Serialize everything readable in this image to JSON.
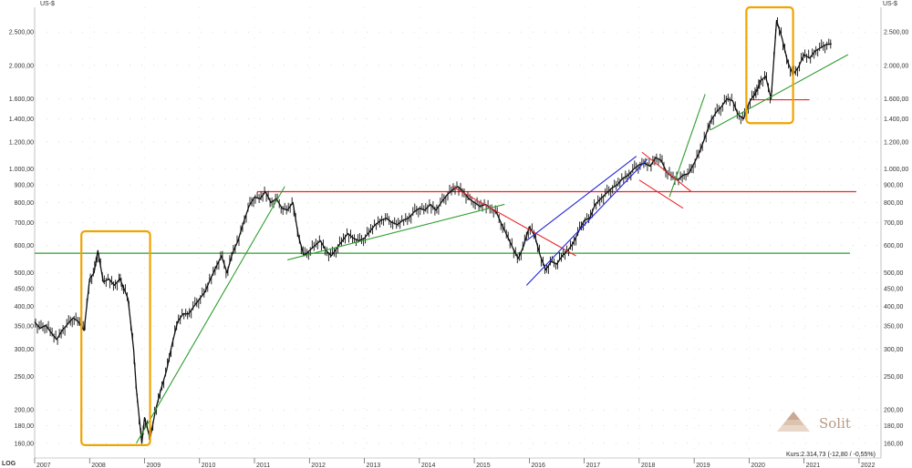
{
  "chart_data": {
    "type": "line",
    "unit_label": "US-$",
    "scale_label": "LOG",
    "y_scale": "log",
    "ylim": [
      145,
      2950
    ],
    "xlim": [
      2007.0,
      2022.4
    ],
    "grid": true,
    "y_ticks": [
      {
        "value": 160,
        "label": "160,00"
      },
      {
        "value": 180,
        "label": "180,00"
      },
      {
        "value": 200,
        "label": "200,00"
      },
      {
        "value": 250,
        "label": "250,00"
      },
      {
        "value": 300,
        "label": "300,00"
      },
      {
        "value": 350,
        "label": "350,00"
      },
      {
        "value": 400,
        "label": "400,00"
      },
      {
        "value": 450,
        "label": "450,00"
      },
      {
        "value": 500,
        "label": "500,00"
      },
      {
        "value": 600,
        "label": "600,00"
      },
      {
        "value": 700,
        "label": "700,00"
      },
      {
        "value": 800,
        "label": "800,00"
      },
      {
        "value": 900,
        "label": "900,00"
      },
      {
        "value": 1000,
        "label": "1.000,00"
      },
      {
        "value": 1200,
        "label": "1.200,00"
      },
      {
        "value": 1400,
        "label": "1.400,00"
      },
      {
        "value": 1600,
        "label": "1.600,00"
      },
      {
        "value": 2000,
        "label": "2.000,00"
      },
      {
        "value": 2500,
        "label": "2.500,00"
      }
    ],
    "x_ticks": [
      "2007",
      "2008",
      "2009",
      "2010",
      "2011",
      "2012",
      "2013",
      "2014",
      "2015",
      "2016",
      "2017",
      "2018",
      "2019",
      "2020",
      "2021",
      "2022"
    ],
    "series": [
      {
        "x": [
          2007.0,
          2007.1,
          2007.2,
          2007.3,
          2007.4,
          2007.5,
          2007.6,
          2007.7,
          2007.8,
          2007.9,
          2008.0,
          2008.08,
          2008.15,
          2008.25,
          2008.35,
          2008.45,
          2008.55,
          2008.6,
          2008.7,
          2008.8,
          2008.85,
          2008.95,
          2009.0,
          2009.1,
          2009.2,
          2009.3,
          2009.4,
          2009.5,
          2009.6,
          2009.7,
          2009.8,
          2009.9,
          2010.0,
          2010.1,
          2010.2,
          2010.3,
          2010.4,
          2010.5,
          2010.6,
          2010.7,
          2010.8,
          2010.9,
          2011.0,
          2011.1,
          2011.2,
          2011.3,
          2011.4,
          2011.5,
          2011.6,
          2011.7,
          2011.8,
          2011.9,
          2012.0,
          2012.1,
          2012.2,
          2012.3,
          2012.4,
          2012.5,
          2012.6,
          2012.7,
          2012.8,
          2012.9,
          2013.0,
          2013.1,
          2013.2,
          2013.3,
          2013.4,
          2013.5,
          2013.6,
          2013.7,
          2013.8,
          2013.9,
          2014.0,
          2014.1,
          2014.2,
          2014.3,
          2014.4,
          2014.5,
          2014.6,
          2014.7,
          2014.8,
          2014.9,
          2015.0,
          2015.1,
          2015.2,
          2015.3,
          2015.4,
          2015.5,
          2015.6,
          2015.7,
          2015.8,
          2015.9,
          2016.0,
          2016.1,
          2016.2,
          2016.3,
          2016.4,
          2016.5,
          2016.6,
          2016.7,
          2016.8,
          2016.9,
          2017.0,
          2017.1,
          2017.2,
          2017.3,
          2017.4,
          2017.5,
          2017.6,
          2017.7,
          2017.8,
          2017.9,
          2018.0,
          2018.1,
          2018.2,
          2018.3,
          2018.4,
          2018.5,
          2018.6,
          2018.7,
          2018.8,
          2018.9,
          2019.0,
          2019.1,
          2019.2,
          2019.3,
          2019.4,
          2019.5,
          2019.6,
          2019.7,
          2019.8,
          2019.9,
          2020.0,
          2020.1,
          2020.15,
          2020.2,
          2020.3,
          2020.4,
          2020.5,
          2020.6,
          2020.7,
          2020.8,
          2020.9,
          2021.0,
          2021.1,
          2021.2,
          2021.3,
          2021.4,
          2021.5
        ],
        "values": [
          360,
          345,
          352,
          335,
          320,
          340,
          355,
          370,
          360,
          340,
          480,
          500,
          580,
          470,
          480,
          460,
          480,
          460,
          420,
          300,
          230,
          160,
          190,
          165,
          200,
          230,
          260,
          310,
          360,
          380,
          380,
          400,
          420,
          440,
          480,
          520,
          560,
          500,
          570,
          620,
          700,
          780,
          830,
          820,
          860,
          800,
          820,
          770,
          760,
          800,
          640,
          560,
          580,
          600,
          620,
          580,
          560,
          590,
          620,
          650,
          630,
          620,
          630,
          660,
          690,
          710,
          720,
          700,
          690,
          710,
          720,
          750,
          770,
          760,
          790,
          760,
          800,
          840,
          870,
          890,
          860,
          820,
          800,
          780,
          790,
          770,
          750,
          690,
          640,
          590,
          550,
          600,
          680,
          640,
          560,
          510,
          540,
          530,
          560,
          580,
          610,
          660,
          710,
          720,
          790,
          820,
          850,
          880,
          900,
          940,
          960,
          1000,
          1030,
          1040,
          1020,
          1080,
          1060,
          980,
          950,
          930,
          960,
          970,
          1040,
          1120,
          1240,
          1380,
          1460,
          1520,
          1600,
          1580,
          1440,
          1400,
          1560,
          1650,
          1700,
          1800,
          1860,
          1600,
          2700,
          2400,
          2050,
          1880,
          1980,
          2150,
          2100,
          2200,
          2250,
          2300,
          2310
        ]
      }
    ],
    "annotations": {
      "horizontal_lines": [
        {
          "value": 570,
          "color": "#2f9e2f"
        },
        {
          "value": 860,
          "color": "#e8262a"
        },
        {
          "value": 1590,
          "color": "#e8262a"
        }
      ],
      "trend_lines": [
        {
          "points": [
            [
              2008.85,
              160
            ],
            [
              2011.55,
              890
            ]
          ],
          "color": "#2f9e2f"
        },
        {
          "points": [
            [
              2011.6,
              545
            ],
            [
              2015.55,
              790
            ]
          ],
          "color": "#2f9e2f"
        },
        {
          "points": [
            [
              2014.6,
              890
            ],
            [
              2016.85,
              560
            ]
          ],
          "color": "#e8262a"
        },
        {
          "points": [
            [
              2015.95,
              620
            ],
            [
              2017.95,
              1090
            ]
          ],
          "color": "#2222dd"
        },
        {
          "points": [
            [
              2015.95,
              460
            ],
            [
              2018.15,
              1070
            ]
          ],
          "color": "#2222dd"
        },
        {
          "points": [
            [
              2018.05,
              1120
            ],
            [
              2018.95,
              860
            ]
          ],
          "color": "#e8262a"
        },
        {
          "points": [
            [
              2018.0,
              930
            ],
            [
              2018.8,
              770
            ]
          ],
          "color": "#e8262a"
        },
        {
          "points": [
            [
              2018.55,
              830
            ],
            [
              2019.2,
              1650
            ]
          ],
          "color": "#2f9e2f"
        },
        {
          "points": [
            [
              2019.3,
              1300
            ],
            [
              2021.8,
              2150
            ]
          ],
          "color": "#2f9e2f"
        }
      ],
      "highlight_boxes": [
        {
          "x": [
            2007.85,
            2009.1
          ],
          "y": [
            158,
            660
          ],
          "color": "#f0a400"
        },
        {
          "x": [
            2019.95,
            2020.8
          ],
          "y": [
            1360,
            2950
          ],
          "color": "#f0a400"
        }
      ]
    },
    "last_price_label": "Kurs:2.314,73 (-12,80 / -0,55%)",
    "watermark_text": "Solit"
  }
}
